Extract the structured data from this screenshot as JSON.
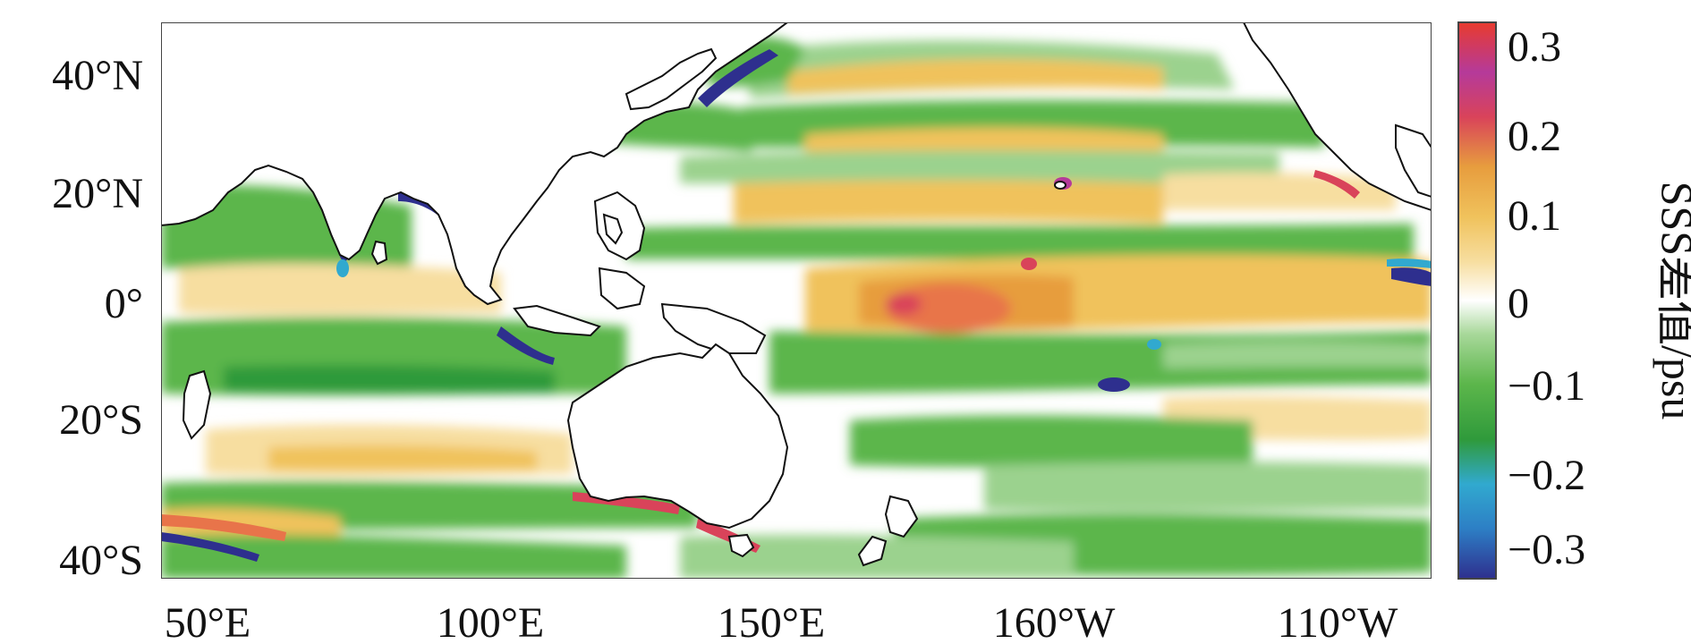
{
  "map": {
    "lat_ticks": [
      "40°N",
      "20°N",
      "0°",
      "20°S",
      "40°S"
    ],
    "lon_ticks": [
      "50°E",
      "100°E",
      "150°E",
      "160°W",
      "110°W"
    ],
    "colors": {
      "ocean_base": "#ffffff",
      "negative_light": "#9bd28e",
      "negative": "#5cb64b",
      "negative_strong": "#2f9a3b",
      "positive_light": "#f7dea0",
      "positive": "#f0c25c",
      "positive_strong": "#e79d3e",
      "extreme_pos": "#d9435a",
      "extreme_neg": "#2e2f8e",
      "cyan": "#31a9cf",
      "coast": "#111111",
      "frame": "#444444"
    }
  },
  "colorbar": {
    "title": "SSS差值/psu",
    "ticks": [
      "0.3",
      "0.2",
      "0.1",
      "0",
      "−0.1",
      "−0.2",
      "−0.3"
    ],
    "range": [
      -0.33,
      0.33
    ],
    "stops": [
      "#2e2f8e",
      "#2d7fc5",
      "#31a9cf",
      "#2f9a3b",
      "#5cb64b",
      "#a8d89a",
      "#ffffff",
      "#f7dea0",
      "#f0c25c",
      "#e79d3e",
      "#d9435a",
      "#b53a9a",
      "#e83b2e"
    ]
  }
}
